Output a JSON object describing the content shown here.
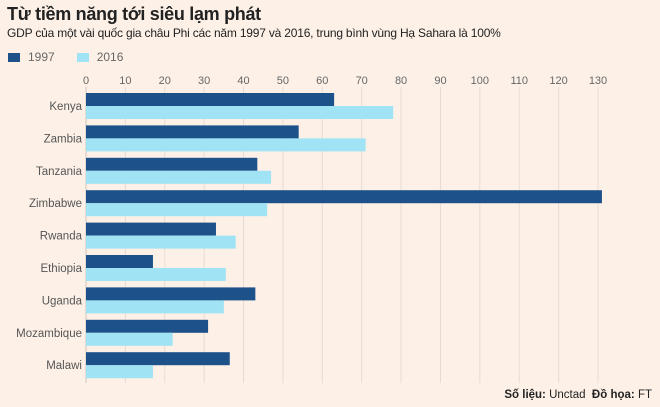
{
  "chart_data": {
    "type": "bar",
    "orientation": "horizontal",
    "title": "Từ tiềm năng tới siêu lạm phát",
    "subtitle": "GDP của một vài quốc gia châu Phi các năm 1997 và 2016, trung bình vùng Hạ Sahara là 100%",
    "categories": [
      "Kenya",
      "Zambia",
      "Tanzania",
      "Zimbabwe",
      "Rwanda",
      "Ethiopia",
      "Uganda",
      "Mozambique",
      "Malawi"
    ],
    "series": [
      {
        "name": "1997",
        "color": "#1d5189",
        "values": [
          63,
          54,
          43.5,
          131,
          33,
          17,
          43,
          31,
          36.5
        ]
      },
      {
        "name": "2016",
        "color": "#9fe3f4",
        "values": [
          78,
          71,
          47,
          46,
          38,
          35.5,
          35,
          22,
          17
        ]
      }
    ],
    "xlim": [
      0,
      130
    ],
    "ticks": [
      "0",
      "10",
      "20",
      "30",
      "40",
      "50",
      "60",
      "70",
      "80",
      "90",
      "100",
      "110",
      "120",
      "130"
    ],
    "grid": true,
    "legend_position": "top-left",
    "source_label": "Số liệu:",
    "source": "Unctad",
    "graphic_label": "Đồ họa:",
    "graphic": "FT"
  }
}
